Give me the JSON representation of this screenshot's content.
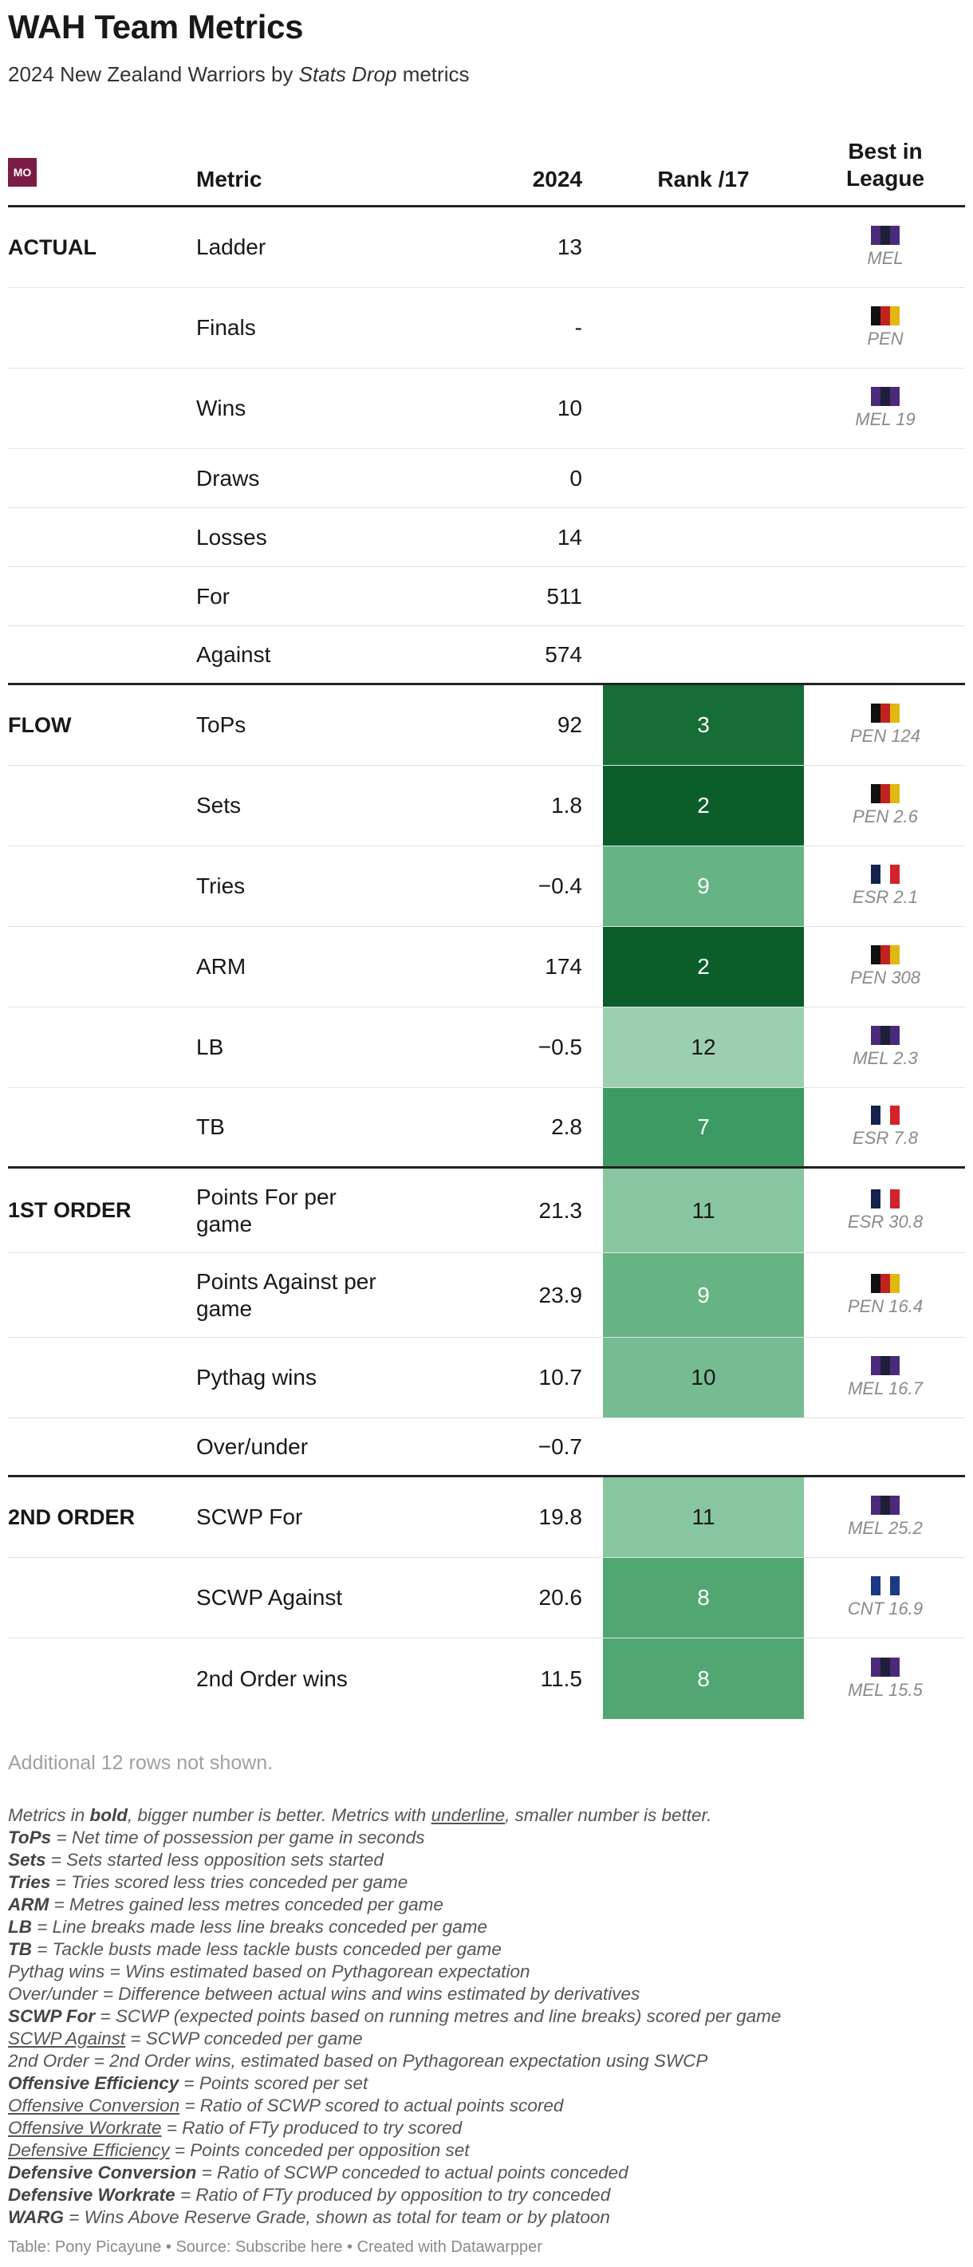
{
  "title": "WAH Team Metrics",
  "subtitle_prefix": "2024 New Zealand Warriors by ",
  "subtitle_em": "Stats Drop",
  "subtitle_suffix": " metrics",
  "logo_text": "MO",
  "columns": {
    "metric": "Metric",
    "value": "2024",
    "rank": "Rank /17",
    "best_line1": "Best in",
    "best_line2": "League"
  },
  "colors": {
    "rank_scale": {
      "2": "#0b5e2a",
      "3": "#176d36",
      "7": "#3d9a62",
      "8": "#52a672",
      "9": "#66b384",
      "10": "#76bc92",
      "11": "#87c6a0",
      "12": "#9ccfb0"
    },
    "rank_text_light": "#ffffff",
    "rank_text_dark": "#181818"
  },
  "flags": {
    "MEL": [
      "#4b2a7a",
      "#1f1f3a",
      "#4b2a7a"
    ],
    "PEN": [
      "#111111",
      "#c0221f",
      "#e0b80f"
    ],
    "ESR": [
      "#13234e",
      "#ffffff",
      "#d2232a"
    ],
    "CNT": [
      "#1b3a84",
      "#ffffff",
      "#1b3a84"
    ]
  },
  "rows": [
    {
      "group": "ACTUAL",
      "metric": "Ladder",
      "value": "13",
      "rank": "",
      "best_team": "MEL",
      "best_label": "MEL"
    },
    {
      "group": "",
      "metric": "Finals",
      "value": "-",
      "rank": "",
      "best_team": "PEN",
      "best_label": "PEN"
    },
    {
      "group": "",
      "metric": "Wins",
      "value": "10",
      "rank": "",
      "best_team": "MEL",
      "best_label": "MEL 19"
    },
    {
      "group": "",
      "metric": "Draws",
      "value": "0",
      "rank": "",
      "best_team": "",
      "best_label": ""
    },
    {
      "group": "",
      "metric": "Losses",
      "value": "14",
      "rank": "",
      "best_team": "",
      "best_label": ""
    },
    {
      "group": "",
      "metric": "For",
      "value": "511",
      "rank": "",
      "best_team": "",
      "best_label": ""
    },
    {
      "group": "",
      "metric": "Against",
      "value": "574",
      "rank": "",
      "best_team": "",
      "best_label": ""
    },
    {
      "group": "FLOW",
      "metric": "ToPs",
      "value": "92",
      "rank": "3",
      "best_team": "PEN",
      "best_label": "PEN 124"
    },
    {
      "group": "",
      "metric": "Sets",
      "value": "1.8",
      "rank": "2",
      "best_team": "PEN",
      "best_label": "PEN 2.6"
    },
    {
      "group": "",
      "metric": "Tries",
      "value": "−0.4",
      "rank": "9",
      "best_team": "ESR",
      "best_label": "ESR 2.1"
    },
    {
      "group": "",
      "metric": "ARM",
      "value": "174",
      "rank": "2",
      "best_team": "PEN",
      "best_label": "PEN 308"
    },
    {
      "group": "",
      "metric": "LB",
      "value": "−0.5",
      "rank": "12",
      "best_team": "MEL",
      "best_label": "MEL 2.3"
    },
    {
      "group": "",
      "metric": "TB",
      "value": "2.8",
      "rank": "7",
      "best_team": "ESR",
      "best_label": "ESR 7.8"
    },
    {
      "group": "1ST ORDER",
      "metric": "Points For per game",
      "value": "21.3",
      "rank": "11",
      "best_team": "ESR",
      "best_label": "ESR 30.8"
    },
    {
      "group": "",
      "metric": "Points Against per game",
      "value": "23.9",
      "rank": "9",
      "best_team": "PEN",
      "best_label": "PEN 16.4"
    },
    {
      "group": "",
      "metric": "Pythag wins",
      "value": "10.7",
      "rank": "10",
      "best_team": "MEL",
      "best_label": "MEL 16.7"
    },
    {
      "group": "",
      "metric": "Over/under",
      "value": "−0.7",
      "rank": "",
      "best_team": "",
      "best_label": ""
    },
    {
      "group": "2ND ORDER",
      "metric": "SCWP For",
      "value": "19.8",
      "rank": "11",
      "best_team": "MEL",
      "best_label": "MEL 25.2"
    },
    {
      "group": "",
      "metric": "SCWP Against",
      "value": "20.6",
      "rank": "8",
      "best_team": "CNT",
      "best_label": "CNT 16.9"
    },
    {
      "group": "",
      "metric": "2nd Order wins",
      "value": "11.5",
      "rank": "8",
      "best_team": "MEL",
      "best_label": "MEL 15.5"
    }
  ],
  "additional_rows_note": "Additional 12 rows not shown.",
  "notes": {
    "intro_a": "Metrics in ",
    "intro_bold": "bold",
    "intro_b": ", bigger number is better. Metrics with ",
    "intro_underline": "underline",
    "intro_c": ", smaller number is better.",
    "items": [
      {
        "term": "ToPs",
        "style": "bold",
        "def": " = Net time of possession per game in seconds"
      },
      {
        "term": "Sets",
        "style": "bold",
        "def": " = Sets started less opposition sets started"
      },
      {
        "term": "Tries",
        "style": "bold",
        "def": " = Tries scored less tries conceded per game"
      },
      {
        "term": "ARM",
        "style": "bold",
        "def": " = Metres gained less metres conceded per game"
      },
      {
        "term": "LB",
        "style": "bold",
        "def": " = Line breaks made less line breaks conceded per game"
      },
      {
        "term": "TB",
        "style": "bold",
        "def": " = Tackle busts made less tackle busts conceded per game"
      },
      {
        "term": "Pythag wins",
        "style": "plain",
        "def": " = Wins estimated based on Pythagorean expectation"
      },
      {
        "term": "Over/under",
        "style": "plain",
        "def": " = Difference between actual wins and wins estimated by derivatives"
      },
      {
        "term": "SCWP For",
        "style": "bold",
        "def": " = SCWP (expected points based on running metres and line breaks) scored per game"
      },
      {
        "term": "SCWP Against",
        "style": "underline",
        "def": " = SCWP conceded per game"
      },
      {
        "term": "2nd Order",
        "style": "plain",
        "def": " = 2nd Order wins, estimated based on Pythagorean expectation using SWCP"
      },
      {
        "term": "Offensive Efficiency",
        "style": "bold",
        "def": " = Points scored per set"
      },
      {
        "term": "Offensive Conversion",
        "style": "underline",
        "def": " = Ratio of SCWP scored to actual points scored"
      },
      {
        "term": "Offensive Workrate",
        "style": "underline",
        "def": " = Ratio of FTy produced to try scored"
      },
      {
        "term": "Defensive Efficiency",
        "style": "underline",
        "def": " = Points conceded per opposition set"
      },
      {
        "term": "Defensive Conversion",
        "style": "bold",
        "def": " = Ratio of SCWP conceded to actual points conceded"
      },
      {
        "term": "Defensive Workrate",
        "style": "bold",
        "def": " = Ratio of FTy produced by opposition to try conceded"
      },
      {
        "term": "WARG",
        "style": "bold",
        "def": " = Wins Above Reserve Grade, shown as total for team or by platoon"
      }
    ]
  },
  "footer": "Table: Pony Picayune • Source: Subscribe here • Created with Datawarpper",
  "chart_data": {
    "type": "table",
    "title": "WAH Team Metrics",
    "subtitle": "2024 New Zealand Warriors by Stats Drop metrics",
    "columns": [
      "Metric",
      "2024",
      "Rank /17",
      "Best in League"
    ],
    "groups": [
      "ACTUAL",
      "FLOW",
      "1ST ORDER",
      "2ND ORDER"
    ],
    "rows": [
      [
        "Ladder",
        "13",
        "",
        "MEL"
      ],
      [
        "Finals",
        "-",
        "",
        "PEN"
      ],
      [
        "Wins",
        "10",
        "",
        "MEL 19"
      ],
      [
        "Draws",
        "0",
        "",
        ""
      ],
      [
        "Losses",
        "14",
        "",
        ""
      ],
      [
        "For",
        "511",
        "",
        ""
      ],
      [
        "Against",
        "574",
        "",
        ""
      ],
      [
        "ToPs",
        "92",
        "3",
        "PEN 124"
      ],
      [
        "Sets",
        "1.8",
        "2",
        "PEN 2.6"
      ],
      [
        "Tries",
        "−0.4",
        "9",
        "ESR 2.1"
      ],
      [
        "ARM",
        "174",
        "2",
        "PEN 308"
      ],
      [
        "LB",
        "−0.5",
        "12",
        "MEL 2.3"
      ],
      [
        "TB",
        "2.8",
        "7",
        "ESR 7.8"
      ],
      [
        "Points For per game",
        "21.3",
        "11",
        "ESR 30.8"
      ],
      [
        "Points Against per game",
        "23.9",
        "9",
        "PEN 16.4"
      ],
      [
        "Pythag wins",
        "10.7",
        "10",
        "MEL 16.7"
      ],
      [
        "Over/under",
        "−0.7",
        "",
        ""
      ],
      [
        "SCWP For",
        "19.8",
        "11",
        "MEL 25.2"
      ],
      [
        "SCWP Against",
        "20.6",
        "8",
        "CNT 16.9"
      ],
      [
        "2nd Order wins",
        "11.5",
        "8",
        "MEL 15.5"
      ]
    ]
  }
}
